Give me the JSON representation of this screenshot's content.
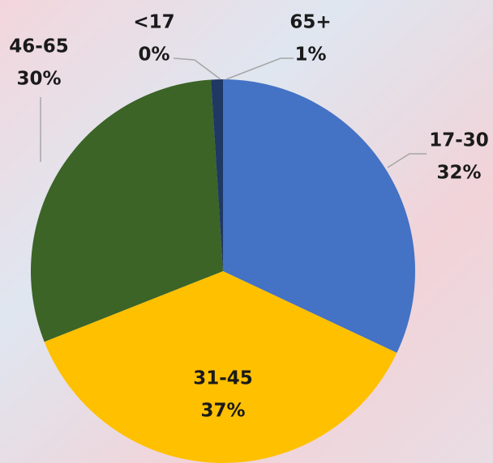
{
  "chart_data": {
    "type": "pie",
    "categories": [
      "17-30",
      "31-45",
      "46-65",
      "<17",
      "65+"
    ],
    "values": [
      32,
      37,
      30,
      0,
      1
    ],
    "value_labels": [
      "32%",
      "37%",
      "30%",
      "0%",
      "1%"
    ],
    "colors": [
      "#4472c4",
      "#ffc000",
      "#3b6426",
      "#a5a5a5",
      "#1f3864"
    ]
  }
}
